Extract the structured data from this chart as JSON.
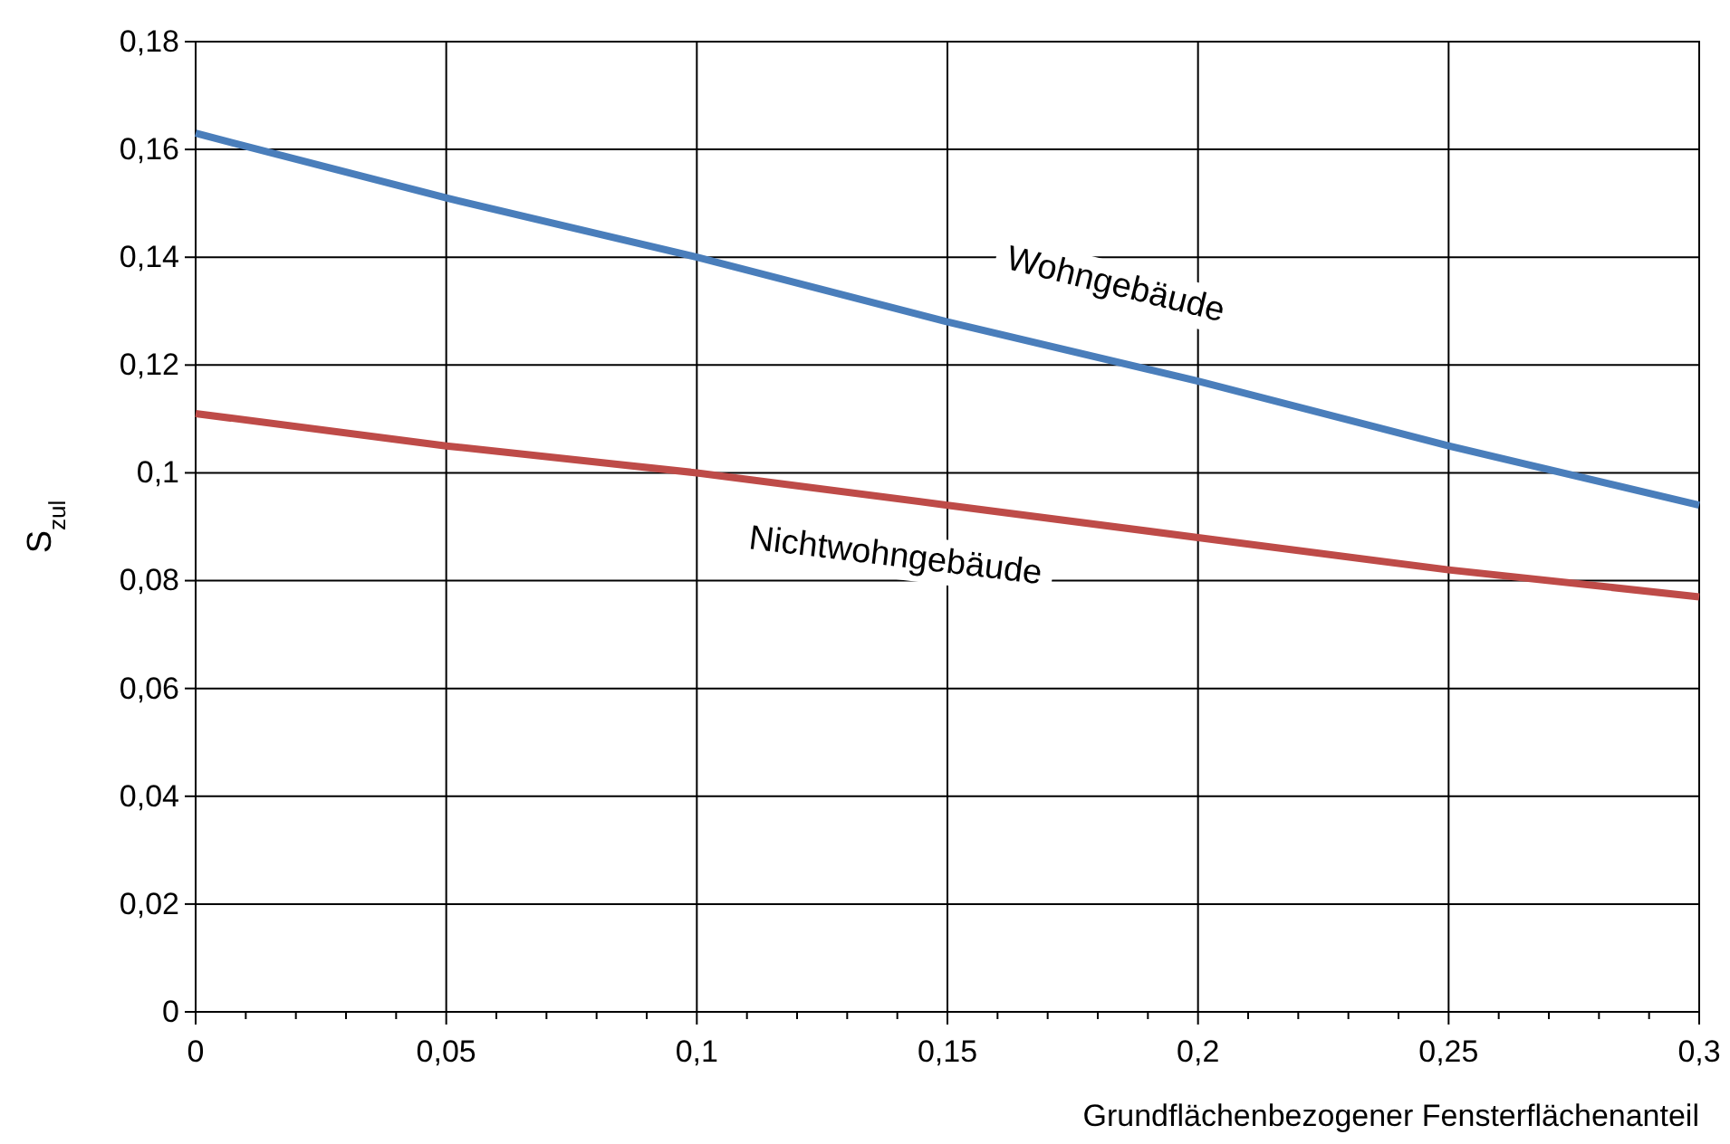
{
  "chart_data": {
    "type": "line",
    "xlabel": "Grundflächenbezogener Fensterflächenanteil",
    "ylabel": "S$_{zul}$",
    "xlim": [
      0,
      0.3
    ],
    "ylim": [
      0,
      0.18
    ],
    "xticks": [
      {
        "value": 0,
        "label": "0"
      },
      {
        "value": 0.01,
        "label": null
      },
      {
        "value": 0.02,
        "label": null
      },
      {
        "value": 0.03,
        "label": null
      },
      {
        "value": 0.04,
        "label": null
      },
      {
        "value": 0.05,
        "label": "0,05"
      },
      {
        "value": 0.06,
        "label": null
      },
      {
        "value": 0.07,
        "label": null
      },
      {
        "value": 0.08,
        "label": null
      },
      {
        "value": 0.09,
        "label": null
      },
      {
        "value": 0.1,
        "label": "0,1"
      },
      {
        "value": 0.11,
        "label": null
      },
      {
        "value": 0.12,
        "label": null
      },
      {
        "value": 0.13,
        "label": null
      },
      {
        "value": 0.14,
        "label": null
      },
      {
        "value": 0.15,
        "label": "0,15"
      },
      {
        "value": 0.16,
        "label": null
      },
      {
        "value": 0.17,
        "label": null
      },
      {
        "value": 0.18,
        "label": null
      },
      {
        "value": 0.19,
        "label": null
      },
      {
        "value": 0.2,
        "label": "0,2"
      },
      {
        "value": 0.21,
        "label": null
      },
      {
        "value": 0.22,
        "label": null
      },
      {
        "value": 0.23,
        "label": null
      },
      {
        "value": 0.24,
        "label": null
      },
      {
        "value": 0.25,
        "label": "0,25"
      },
      {
        "value": 0.26,
        "label": null
      },
      {
        "value": 0.27,
        "label": null
      },
      {
        "value": 0.28,
        "label": null
      },
      {
        "value": 0.29,
        "label": null
      },
      {
        "value": 0.3,
        "label": "0,3"
      }
    ],
    "yticks": [
      {
        "value": 0,
        "label": "0"
      },
      {
        "value": 0.02,
        "label": "0,02"
      },
      {
        "value": 0.04,
        "label": "0,04"
      },
      {
        "value": 0.06,
        "label": "0,06"
      },
      {
        "value": 0.08,
        "label": "0,08"
      },
      {
        "value": 0.1,
        "label": "0,1"
      },
      {
        "value": 0.12,
        "label": "0,12"
      },
      {
        "value": 0.14,
        "label": "0,14"
      },
      {
        "value": 0.16,
        "label": "0,16"
      },
      {
        "value": 0.18,
        "label": "0,18"
      }
    ],
    "grid": true,
    "marker": "none",
    "line_style": "solid",
    "x": [
      0,
      0.05,
      0.1,
      0.15,
      0.2,
      0.25,
      0.3
    ],
    "series": [
      {
        "name": "Wohngebäude",
        "color": "#4a7ebb",
        "values": [
          0.163,
          0.151,
          0.14,
          0.128,
          0.117,
          0.105,
          0.094
        ]
      },
      {
        "name": "Nichtwohngebäude",
        "color": "#be4b48",
        "values": [
          0.111,
          0.105,
          0.1,
          0.094,
          0.088,
          0.082,
          0.077
        ]
      }
    ]
  }
}
